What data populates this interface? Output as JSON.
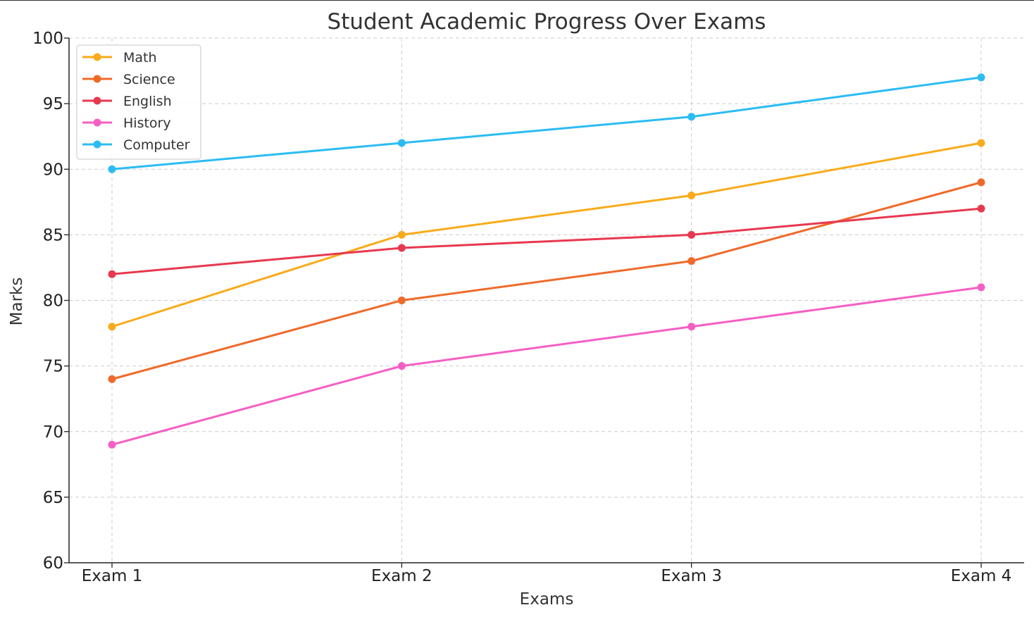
{
  "chart_data": {
    "type": "line",
    "title": "Student Academic Progress Over Exams",
    "xlabel": "Exams",
    "ylabel": "Marks",
    "categories": [
      "Exam 1",
      "Exam 2",
      "Exam 3",
      "Exam 4"
    ],
    "ylim": [
      60,
      100
    ],
    "yticks": [
      "60",
      "65",
      "70",
      "75",
      "80",
      "85",
      "90",
      "95",
      "100"
    ],
    "grid": true,
    "legend_position": "top-left",
    "series": [
      {
        "name": "Math",
        "color": "#f9ab1a",
        "values": [
          78,
          85,
          88,
          92
        ]
      },
      {
        "name": "Science",
        "color": "#ef6a2a",
        "values": [
          74,
          80,
          83,
          89
        ]
      },
      {
        "name": "English",
        "color": "#e8384f",
        "values": [
          82,
          84,
          85,
          87
        ]
      },
      {
        "name": "History",
        "color": "#f55fc4",
        "values": [
          69,
          75,
          78,
          81
        ]
      },
      {
        "name": "Computer",
        "color": "#2bbcf4",
        "values": [
          90,
          92,
          94,
          97
        ]
      }
    ]
  }
}
